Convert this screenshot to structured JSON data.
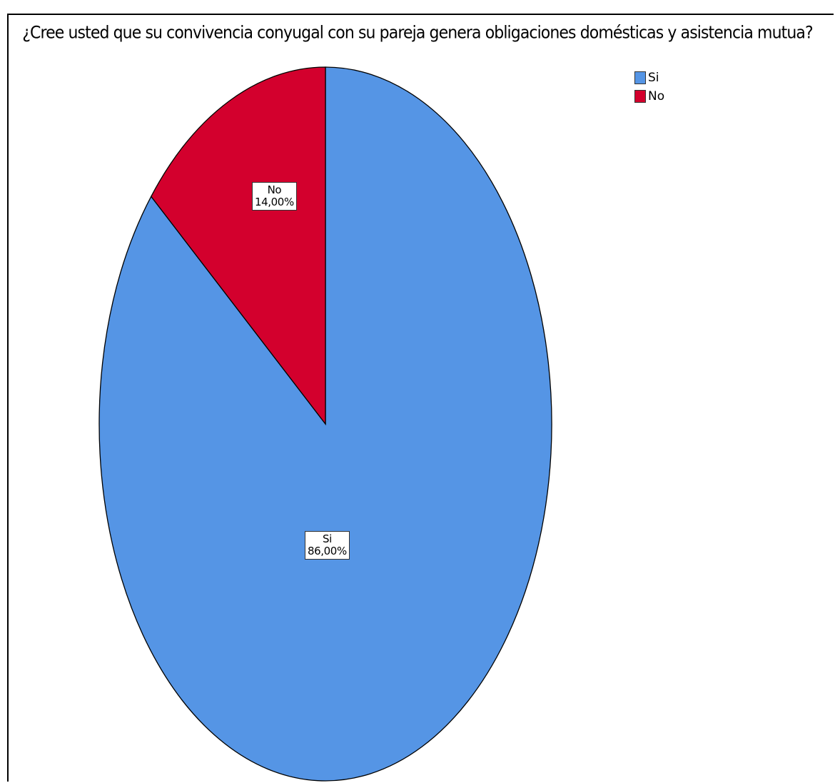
{
  "chart_data": {
    "type": "pie",
    "title": "¿Cree usted que su convivencia conyugal con su pareja genera obligaciones domésticas y asistencia mutua?",
    "categories": [
      "Si",
      "No"
    ],
    "values": [
      86.0,
      14.0
    ],
    "value_labels": [
      "86,00%",
      "14,00%"
    ],
    "colors": [
      "#5595E5",
      "#D3002D"
    ],
    "legend": {
      "placement": "top-right",
      "entries": [
        "Si",
        "No"
      ]
    }
  }
}
